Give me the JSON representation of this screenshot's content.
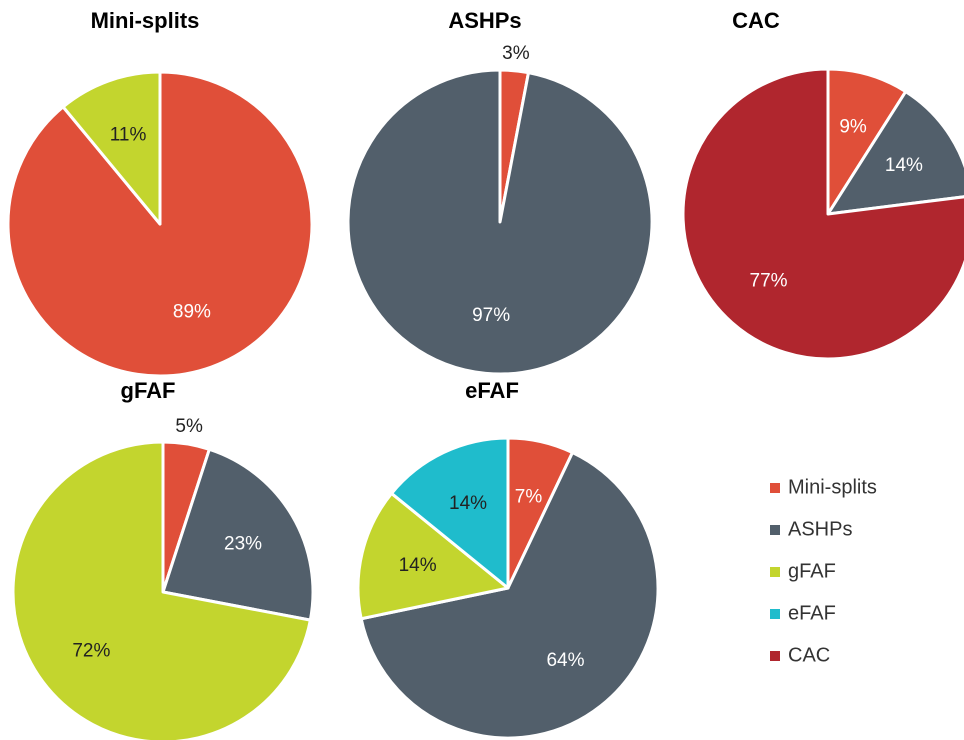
{
  "legend": {
    "names": [
      "Mini-splits",
      "ASHPs",
      "gFAF",
      "eFAF",
      "CAC"
    ],
    "colors": [
      "#e04f39",
      "#525f6b",
      "#c3d52e",
      "#1fbccc",
      "#b0262e"
    ]
  },
  "chart_data": [
    {
      "type": "pie",
      "title": "Mini-splits",
      "categories": [
        "Mini-splits",
        "gFAF"
      ],
      "values": [
        89,
        11
      ],
      "value_labels": [
        "89%",
        "11%"
      ]
    },
    {
      "type": "pie",
      "title": "ASHPs",
      "categories": [
        "Mini-splits",
        "ASHPs"
      ],
      "values": [
        3,
        97
      ],
      "value_labels": [
        "3%",
        "97%"
      ]
    },
    {
      "type": "pie",
      "title": "CAC",
      "categories": [
        "Mini-splits",
        "ASHPs",
        "CAC"
      ],
      "values": [
        9,
        14,
        77
      ],
      "value_labels": [
        "9%",
        "14%",
        "77%"
      ]
    },
    {
      "type": "pie",
      "title": "gFAF",
      "categories": [
        "Mini-splits",
        "ASHPs",
        "gFAF"
      ],
      "values": [
        5,
        23,
        72
      ],
      "value_labels": [
        "5%",
        "23%",
        "72%"
      ]
    },
    {
      "type": "pie",
      "title": "eFAF",
      "categories": [
        "Mini-splits",
        "ASHPs",
        "gFAF",
        "eFAF"
      ],
      "values": [
        7,
        64,
        14,
        14
      ],
      "value_labels": [
        "7%",
        "64%",
        "14%",
        "14%"
      ]
    }
  ]
}
